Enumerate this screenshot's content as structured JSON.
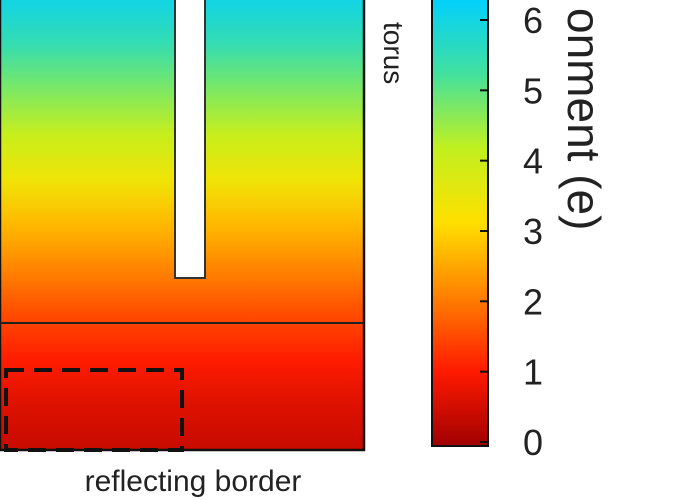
{
  "chart_data": {
    "type": "heatmap",
    "colorbar": {
      "label": "onment (e)",
      "ticks": [
        "0",
        "1",
        "2",
        "3",
        "4",
        "5",
        "6"
      ],
      "range": [
        0,
        6.5
      ],
      "stops": [
        "#a00000",
        "#ff1a00",
        "#ff8000",
        "#ffe000",
        "#c0f020",
        "#40e0a0",
        "#00d0ff"
      ]
    },
    "field": {
      "bands": [
        {
          "value": 6.2
        },
        {
          "value": 5.6
        },
        {
          "value": 4.9
        },
        {
          "value": 4.2
        },
        {
          "value": 3.5
        },
        {
          "value": 2.8
        },
        {
          "value": 2.2
        },
        {
          "value": 1.6
        },
        {
          "value": 1.1
        },
        {
          "value": 0.7
        },
        {
          "value": 0.45
        }
      ]
    },
    "labels": {
      "bottom": "reflecting border",
      "side": "torus"
    },
    "colors": {
      "frame": "#111111",
      "insert": "#ffffff",
      "dash": "#111111"
    }
  }
}
